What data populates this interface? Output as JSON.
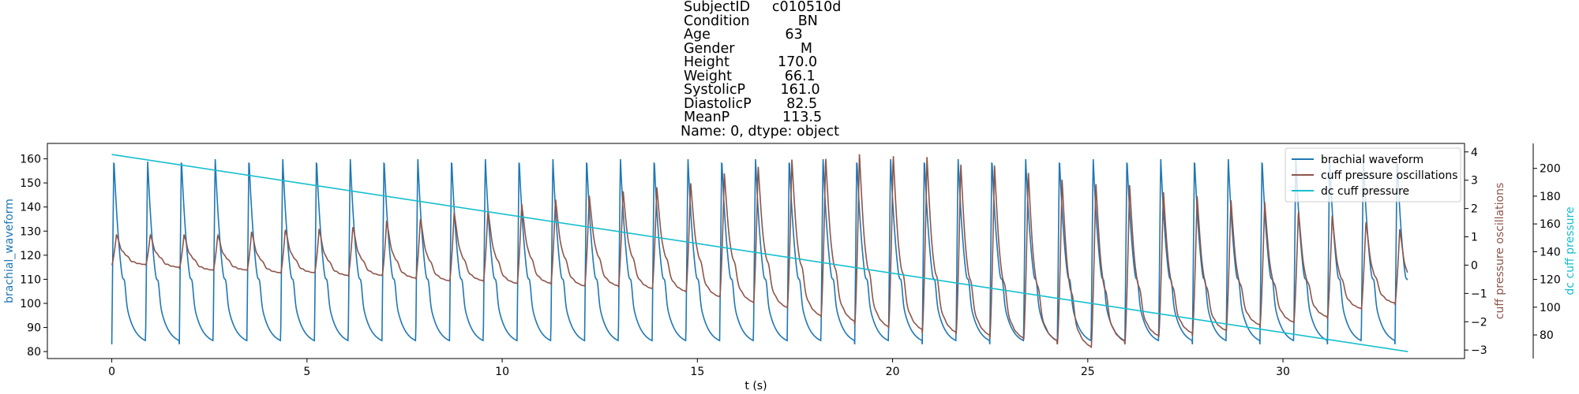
{
  "title_lines": [
    "SubjectID     c010510d",
    "Condition           BN",
    "Age                 63",
    "Gender               M",
    "Height           170.0",
    "Weight            66.1",
    "SystolicP        161.0",
    "DiastolicP        82.5",
    "MeanP            113.5",
    "Name: 0, dtype: object"
  ],
  "chart_data": {
    "type": "line",
    "xlabel": "t (s)",
    "xlim": [
      -1.65,
      34.65
    ],
    "x_ticks": [
      0,
      5,
      10,
      15,
      20,
      25,
      30
    ],
    "axes": {
      "left": {
        "label": "brachial_waveform",
        "color": "#1f77b4",
        "ylim": [
          77.1,
          166.4
        ],
        "ticks": [
          80,
          90,
          100,
          110,
          120,
          130,
          140,
          150,
          160
        ]
      },
      "right1": {
        "label": "cuff pressure oscillations",
        "color": "#8c564b",
        "ylim": [
          -3.3,
          4.3
        ],
        "ticks": [
          -3,
          -2,
          -1,
          0,
          1,
          2,
          3,
          4
        ]
      },
      "right2": {
        "label": "dc cuff pressure",
        "color": "#17becf",
        "ylim": [
          63,
          218
        ],
        "ticks": [
          80,
          100,
          120,
          140,
          160,
          180,
          200
        ]
      }
    },
    "legend": {
      "position": "upper right",
      "entries": [
        "brachial waveform",
        "cuff pressure oscillations",
        "dc cuff pressure"
      ]
    },
    "series": [
      {
        "name": "brachial waveform",
        "axis": "left",
        "color": "#1f77b4",
        "beat_period_s": 0.865,
        "duration_s": 33.2,
        "beat_peaks": [
          161,
          160,
          161,
          161,
          161,
          161,
          161,
          161,
          161,
          161,
          161,
          161,
          161,
          161,
          161,
          161,
          161,
          161,
          161,
          161,
          161,
          161,
          161,
          161,
          161,
          161,
          161,
          161,
          161,
          161,
          161,
          161,
          161,
          161,
          161,
          161,
          161,
          161,
          161
        ],
        "beat_troughs": [
          83,
          83,
          83,
          83,
          83,
          83,
          83,
          83,
          83,
          83,
          83,
          83,
          83,
          83,
          83,
          83,
          83,
          83,
          83,
          83,
          83,
          83,
          83,
          83,
          83,
          83,
          83,
          83,
          83,
          83,
          83,
          83,
          83,
          83,
          83,
          83,
          83,
          83,
          83
        ]
      },
      {
        "name": "cuff pressure oscillations",
        "axis": "right1",
        "color": "#8c564b",
        "beat_peaks": [
          1.1,
          1.1,
          1.1,
          1.1,
          1.2,
          1.3,
          1.3,
          1.4,
          1.6,
          1.7,
          1.9,
          2.0,
          2.2,
          2.4,
          2.5,
          2.7,
          2.8,
          3.0,
          3.3,
          3.6,
          3.8,
          3.9,
          4.0,
          4.0,
          3.9,
          3.7,
          3.6,
          3.4,
          3.1,
          3.0,
          2.9,
          2.7,
          2.5,
          2.4,
          2.3,
          2.0,
          1.8,
          1.6,
          1.3
        ],
        "beat_troughs": [
          0.0,
          -0.1,
          -0.2,
          -0.2,
          -0.3,
          -0.3,
          -0.4,
          -0.4,
          -0.5,
          -0.6,
          -0.6,
          -0.7,
          -0.7,
          -0.8,
          -0.8,
          -0.9,
          -1.0,
          -1.2,
          -1.4,
          -1.6,
          -1.9,
          -2.1,
          -2.3,
          -2.4,
          -2.5,
          -2.6,
          -2.7,
          -2.8,
          -3.0,
          -2.8,
          -2.6,
          -2.5,
          -2.4,
          -2.2,
          -2.1,
          -1.9,
          -1.6,
          -1.4,
          -1.2
        ],
        "end_value": -1.1
      },
      {
        "name": "dc cuff pressure",
        "axis": "right2",
        "color": "#17becf",
        "x": [
          0,
          33.2
        ],
        "y": [
          210,
          68
        ]
      }
    ]
  }
}
